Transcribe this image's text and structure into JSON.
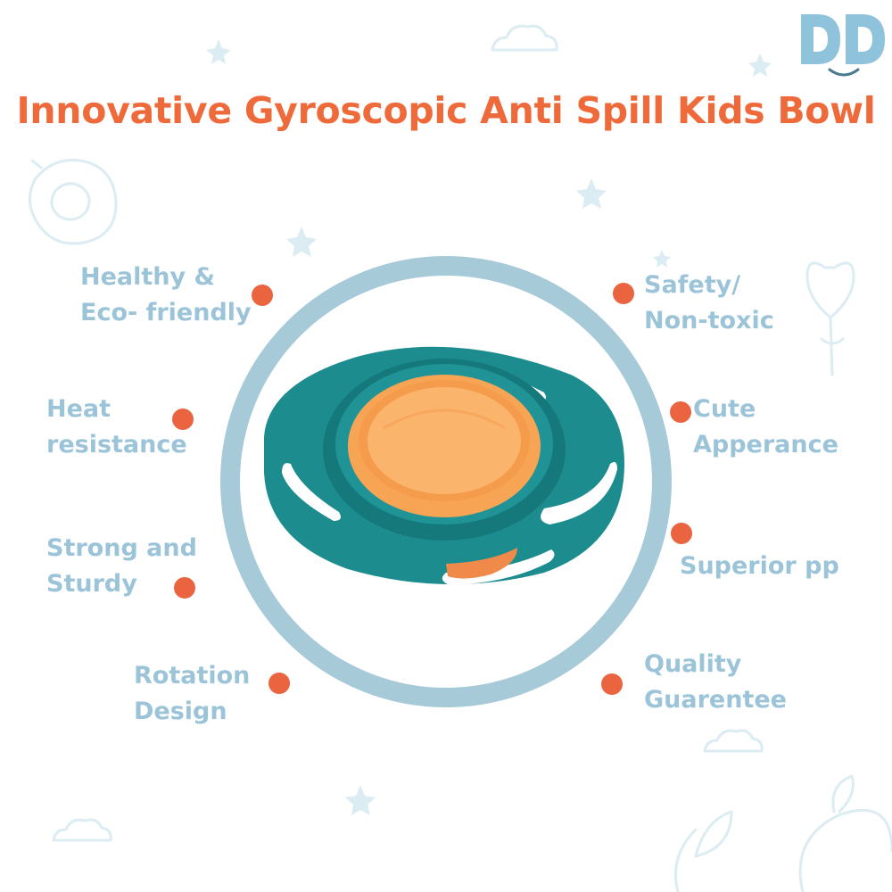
{
  "brand": {
    "logo_text": "DD"
  },
  "title": "Innovative Gyroscopic Anti Spill Kids Bowl",
  "colors": {
    "title": "#ef6a3a",
    "feature_text": "#9cc4d9",
    "dot": "#ea6440",
    "ring": "#a7cad9",
    "bowl_teal": "#1d8c8e",
    "bowl_teal_dark": "#15787a",
    "bowl_orange": "#f7a455",
    "bowl_orange_light": "#fbb46b",
    "decor": "#dcecf3",
    "logo": "#8ec3db"
  },
  "features": {
    "healthy": {
      "line1": "Healthy &",
      "line2": "Eco- friendly"
    },
    "heat": {
      "line1": "Heat",
      "line2": "resistance"
    },
    "strong": {
      "line1": "Strong and",
      "line2": "Sturdy"
    },
    "rotation": {
      "line1": "Rotation",
      "line2": "Design"
    },
    "safety": {
      "line1": "Safety/",
      "line2": "Non-toxic"
    },
    "cute": {
      "line1": "Cute",
      "line2": "Apperance"
    },
    "superior": {
      "line1": "Superior pp"
    },
    "quality": {
      "line1": "Quality",
      "line2": "Guarentee"
    }
  }
}
